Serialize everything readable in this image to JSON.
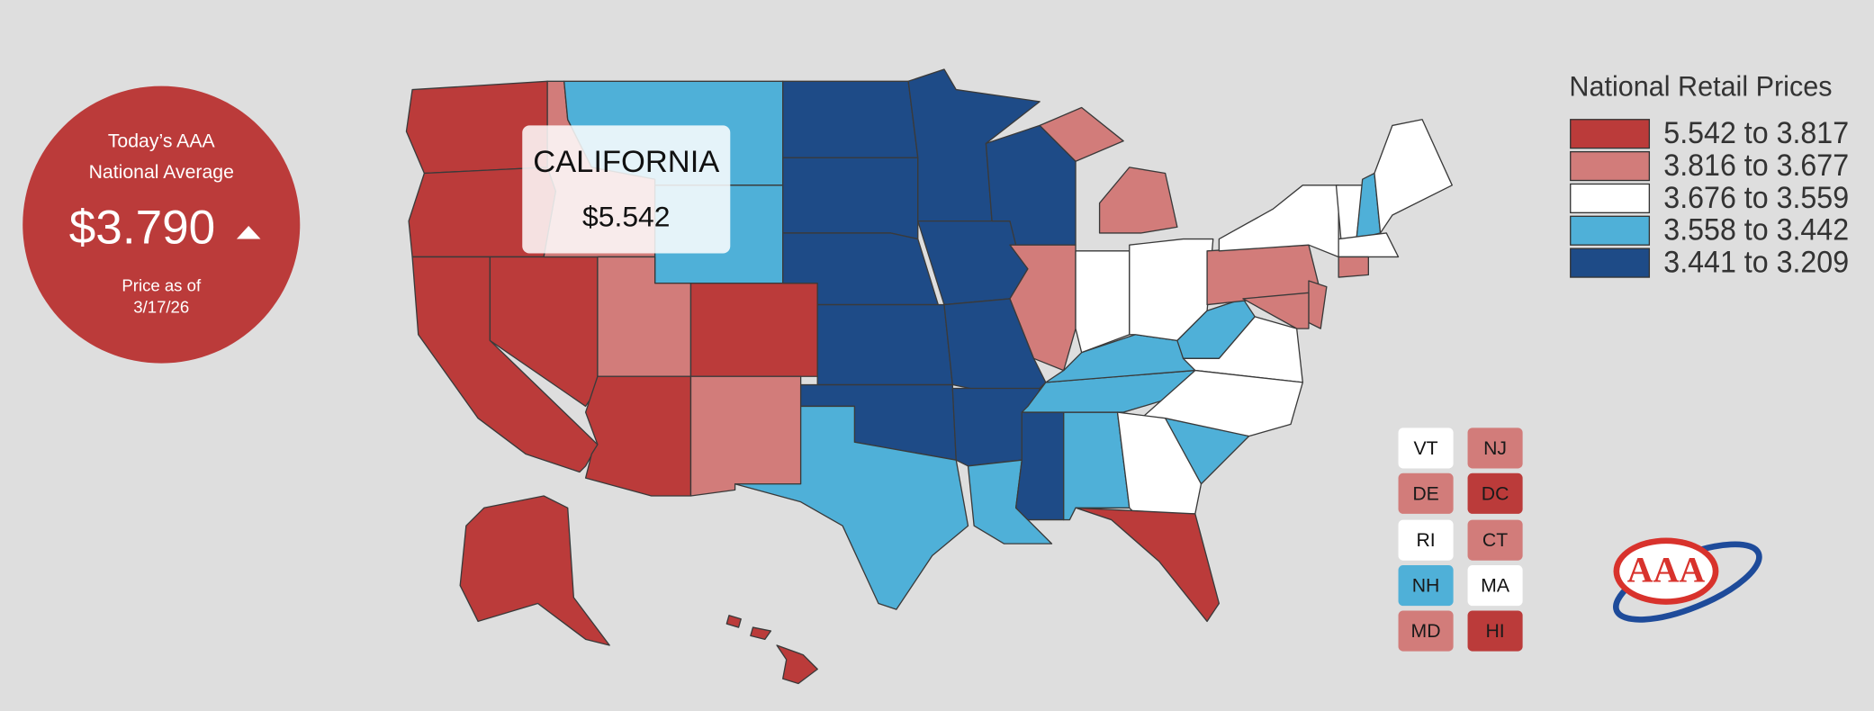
{
  "national_average": {
    "heading": [
      "Today’s AAA",
      "National Average"
    ],
    "price": "$3.790",
    "as_of_label": "Price as of",
    "date": "3/17/26"
  },
  "legend": {
    "title": "National Retail Prices",
    "items": [
      {
        "label": "5.542 to 3.817",
        "color": "#bb3b3a"
      },
      {
        "label": "3.816 to 3.677",
        "color": "#d27c7a"
      },
      {
        "label": "3.676 to 3.559",
        "color": "#ffffff"
      },
      {
        "label": "3.558 to 3.442",
        "color": "#4fb0d8"
      },
      {
        "label": "3.441 to 3.209",
        "color": "#1e4b87"
      }
    ]
  },
  "tooltip": {
    "state": "CALIFORNIA",
    "price": "$5.542"
  },
  "small_states": [
    "VT",
    "NJ",
    "DE",
    "DC",
    "RI",
    "CT",
    "NH",
    "MA",
    "MD",
    "HI"
  ],
  "logo": {
    "text": "AAA"
  }
}
